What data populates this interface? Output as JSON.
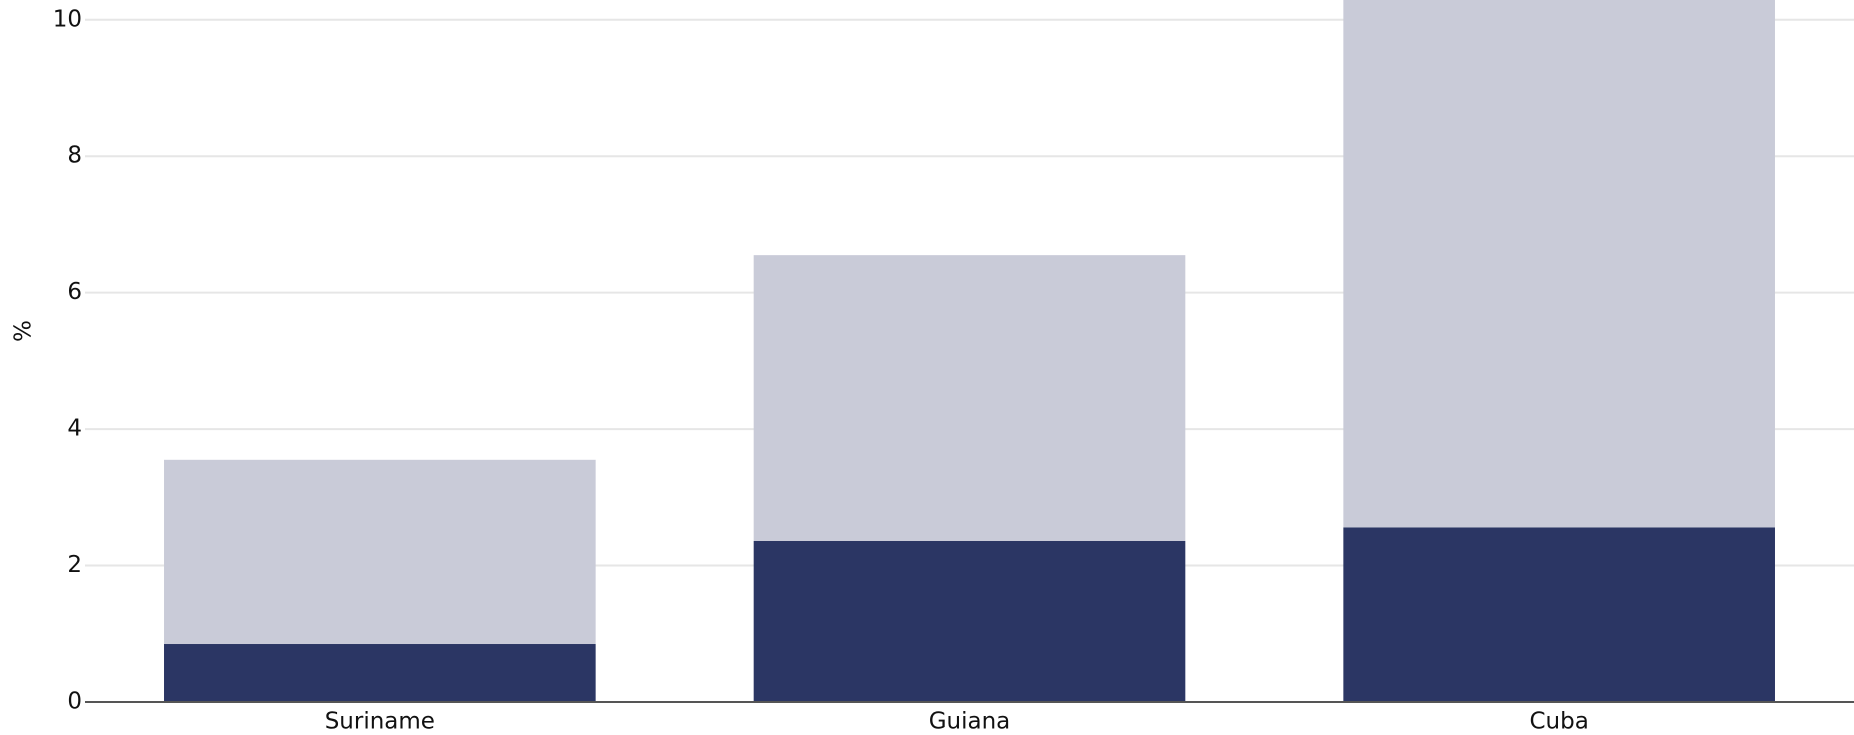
{
  "chart_data": {
    "type": "stacked_bar",
    "y_label": "%",
    "categories": [
      "Suriname",
      "Guiana",
      "Cuba"
    ],
    "series": [
      {
        "color": "#2b3664",
        "values": [
          0.85,
          2.36,
          2.56
        ]
      },
      {
        "color": "#c9cbd8",
        "values": [
          2.7,
          4.19,
          7.9
        ]
      }
    ],
    "ylim": [
      0,
      10.29
    ],
    "yticks": [
      0,
      2,
      4,
      6,
      8,
      10
    ],
    "grid": true
  }
}
